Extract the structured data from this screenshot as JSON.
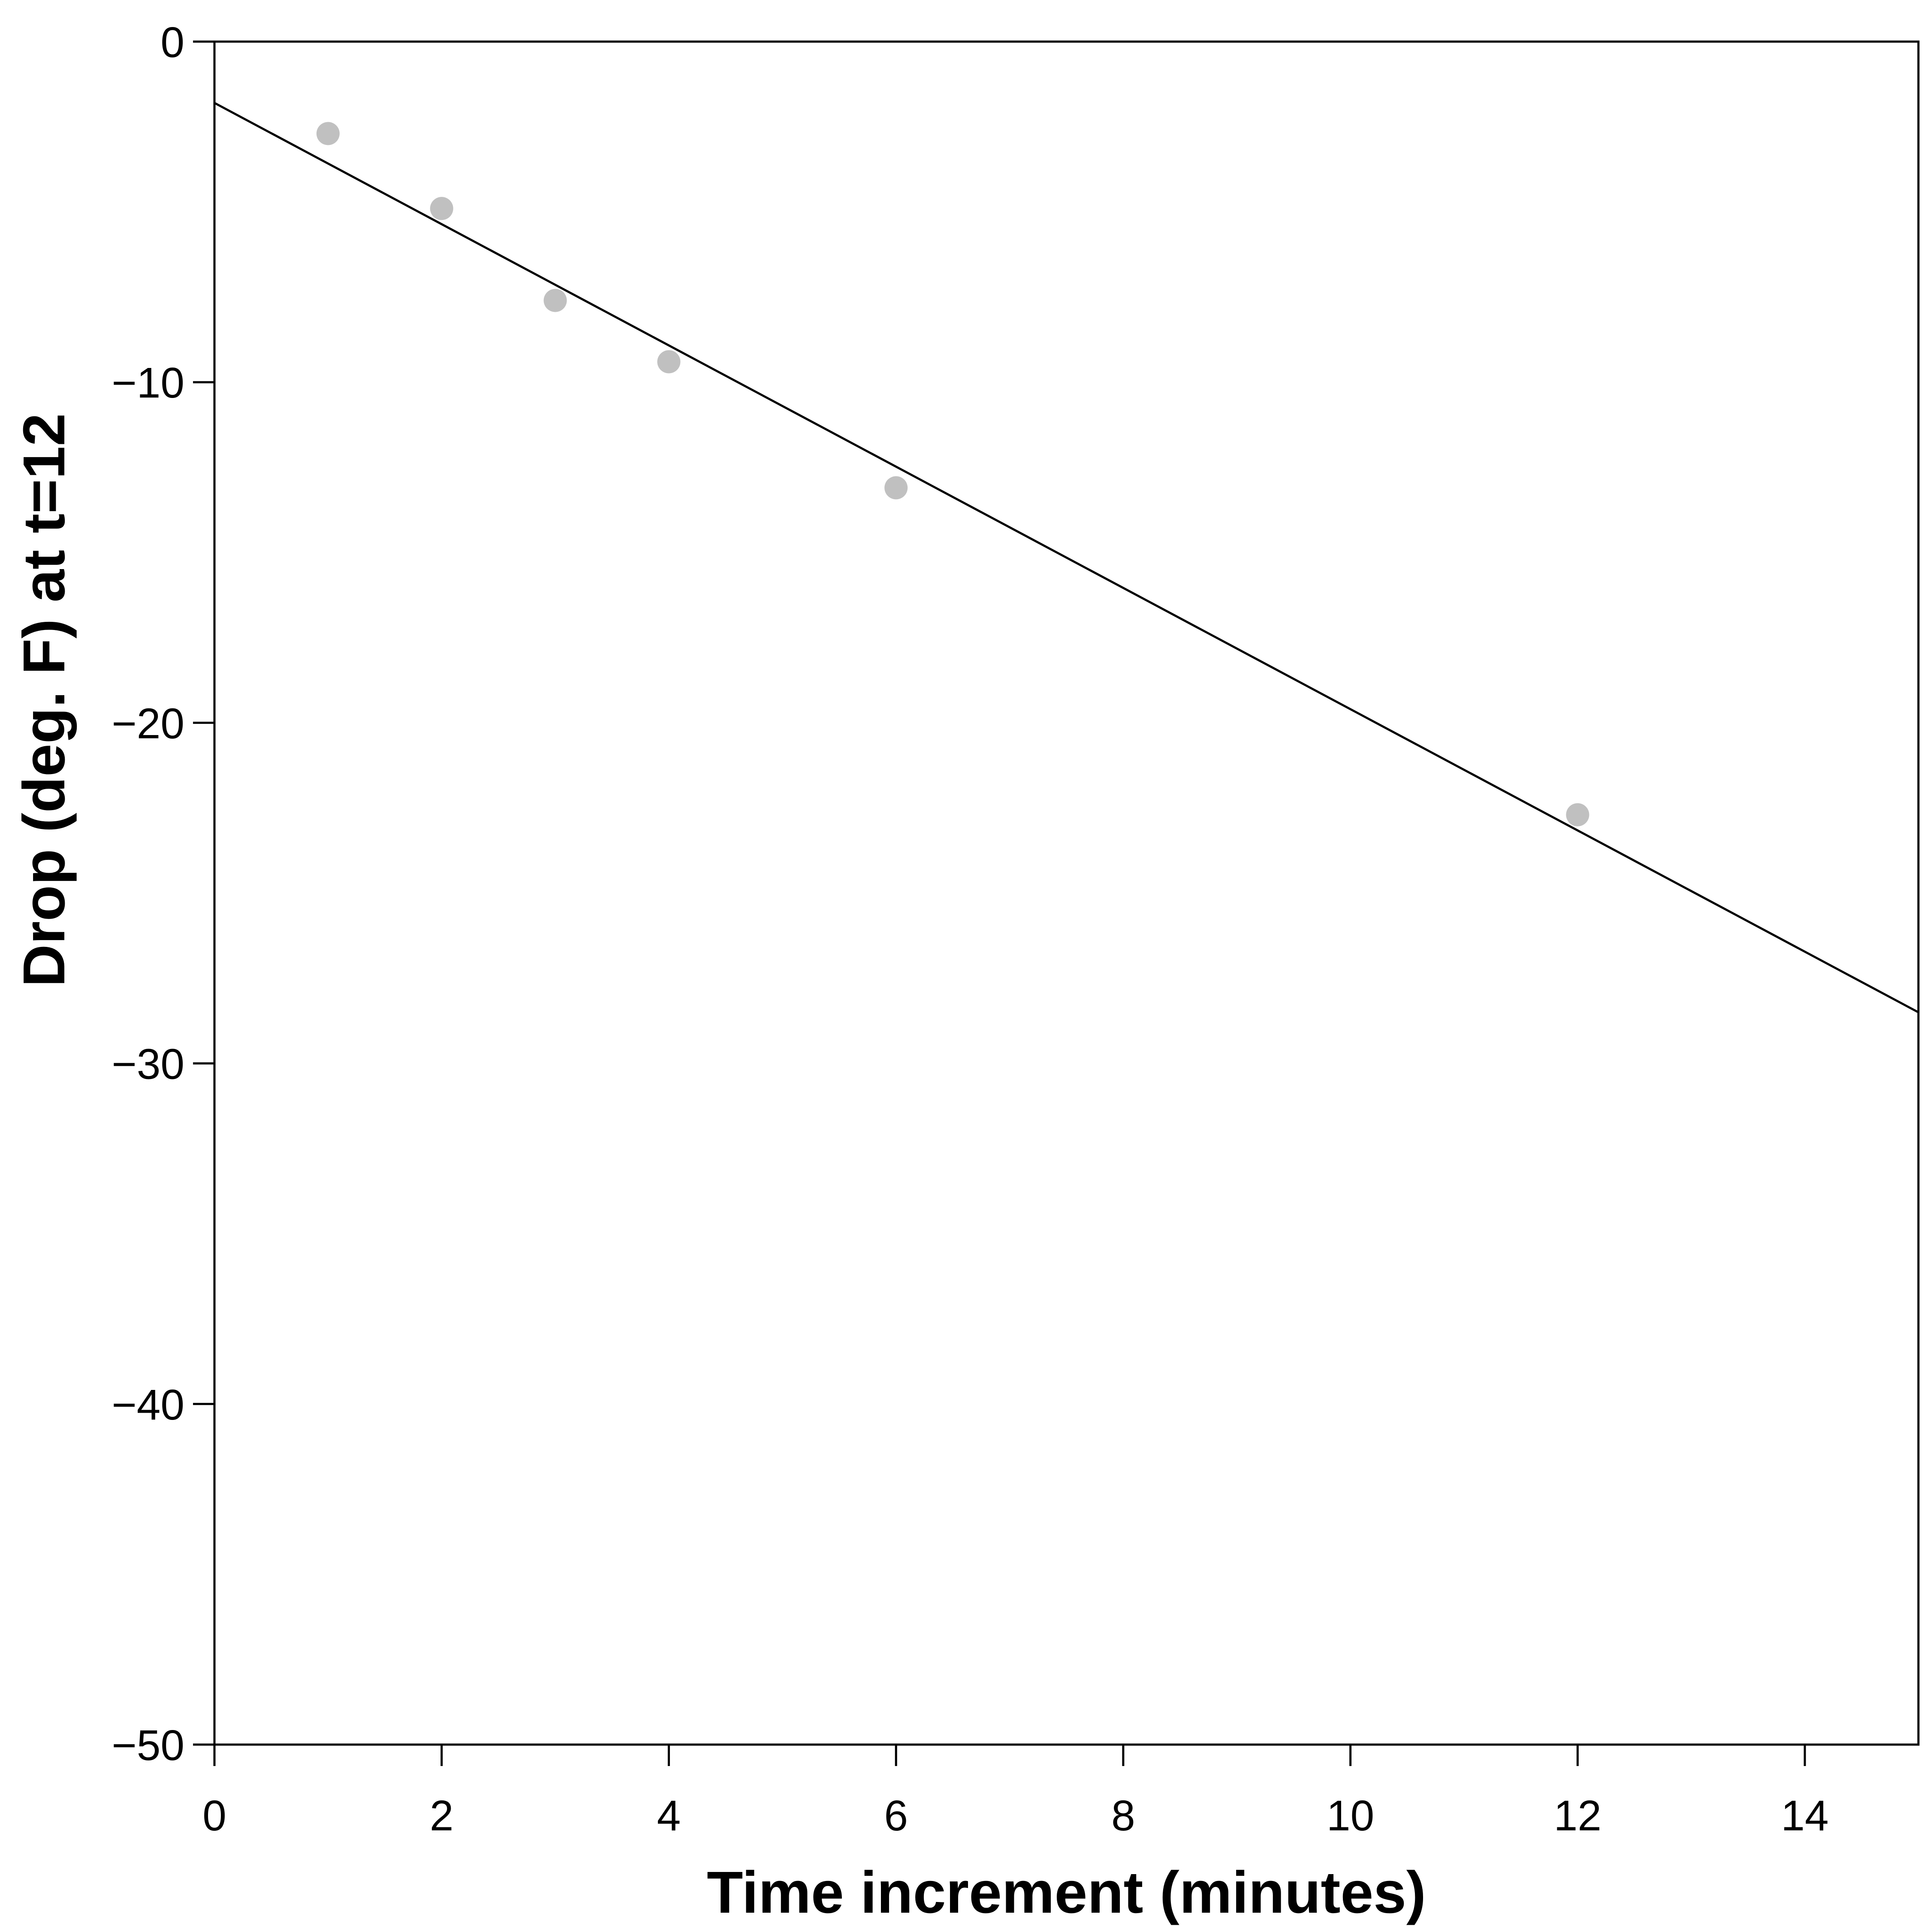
{
  "chart_data": {
    "type": "scatter",
    "title": "",
    "xlabel": "Time increment (minutes)",
    "ylabel": "Drop (deg. F) at t=12",
    "xlim": [
      0,
      15
    ],
    "ylim": [
      -50,
      0
    ],
    "xticks": [
      0,
      2,
      4,
      6,
      8,
      10,
      12,
      14
    ],
    "yticks": [
      0,
      -10,
      -20,
      -30,
      -40,
      -50
    ],
    "xtick_labels": [
      "0",
      "2",
      "4",
      "6",
      "8",
      "10",
      "12",
      "14"
    ],
    "ytick_labels": [
      "0",
      "−10",
      "−20",
      "−30",
      "−40",
      "−50"
    ],
    "grid": false,
    "legend": "none",
    "series": [
      {
        "kind": "points",
        "color": "#c0c0c0",
        "x": [
          1,
          2,
          3,
          4,
          6,
          12
        ],
        "y": [
          -2.7,
          -4.9,
          -7.6,
          -9.4,
          -13.1,
          -22.7
        ]
      },
      {
        "kind": "line",
        "color": "#000000",
        "x": [
          0,
          15
        ],
        "y": [
          -1.8,
          -28.5
        ]
      }
    ]
  }
}
